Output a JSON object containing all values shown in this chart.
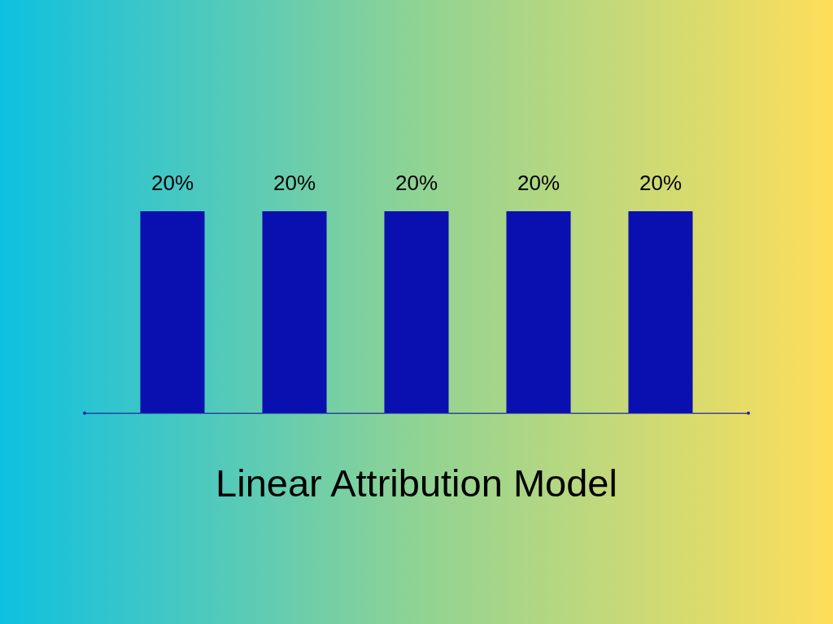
{
  "chart_data": {
    "type": "bar",
    "title": "Linear Attribution Model",
    "categories": [
      null,
      null,
      null,
      null,
      null
    ],
    "values": [
      20,
      20,
      20,
      20,
      20
    ],
    "color": "#0a10b0",
    "value_labels": [
      "20%",
      "20%",
      "20%",
      "20%",
      "20%"
    ],
    "ylim": [
      0,
      20
    ],
    "tick_labels": false
  }
}
